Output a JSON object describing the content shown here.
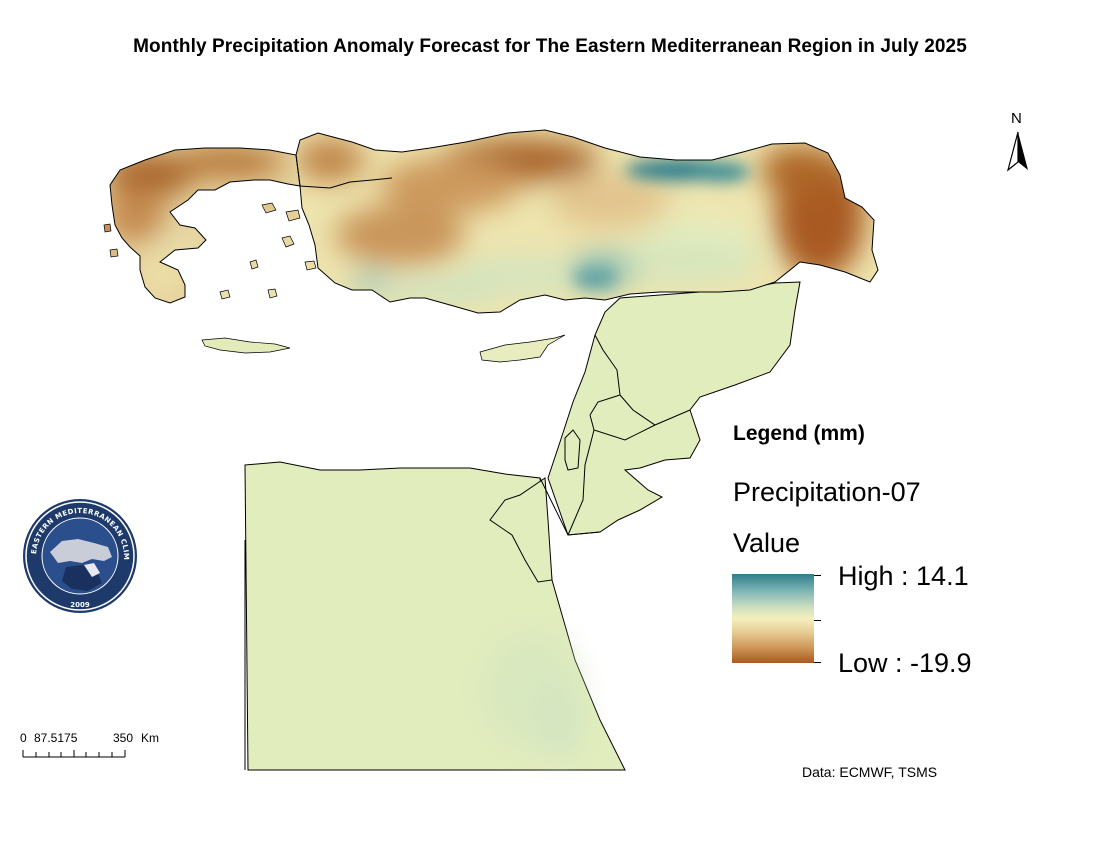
{
  "map_title": "Monthly Precipitation Anomaly Forecast for The Eastern Mediterranean Region in July 2025",
  "legend": {
    "heading": "Legend (mm)",
    "layer": "Precipitation-07",
    "field": "Value",
    "high_label": "High : 14.1",
    "low_label": "Low : -19.9",
    "high_value": 14.1,
    "low_value": -19.9,
    "ramp_colors": [
      "#2e7e8c",
      "#82b8b6",
      "#f4efbd",
      "#cf9a5a",
      "#a95a20"
    ]
  },
  "north_arrow": {
    "label": "N"
  },
  "scale_bar": {
    "labels": [
      "0",
      "87.5175",
      "350",
      "Km"
    ]
  },
  "source": "Data: ECMWF, TSMS",
  "logo": {
    "text": "EASTERN MEDITERRANEAN CLIMATE CENTRE",
    "year": "2009"
  },
  "colors": {
    "land_base": "#e2edbd",
    "wet": "#2e7e8c",
    "dry": "#a95a20",
    "neutral": "#f4efbd"
  }
}
